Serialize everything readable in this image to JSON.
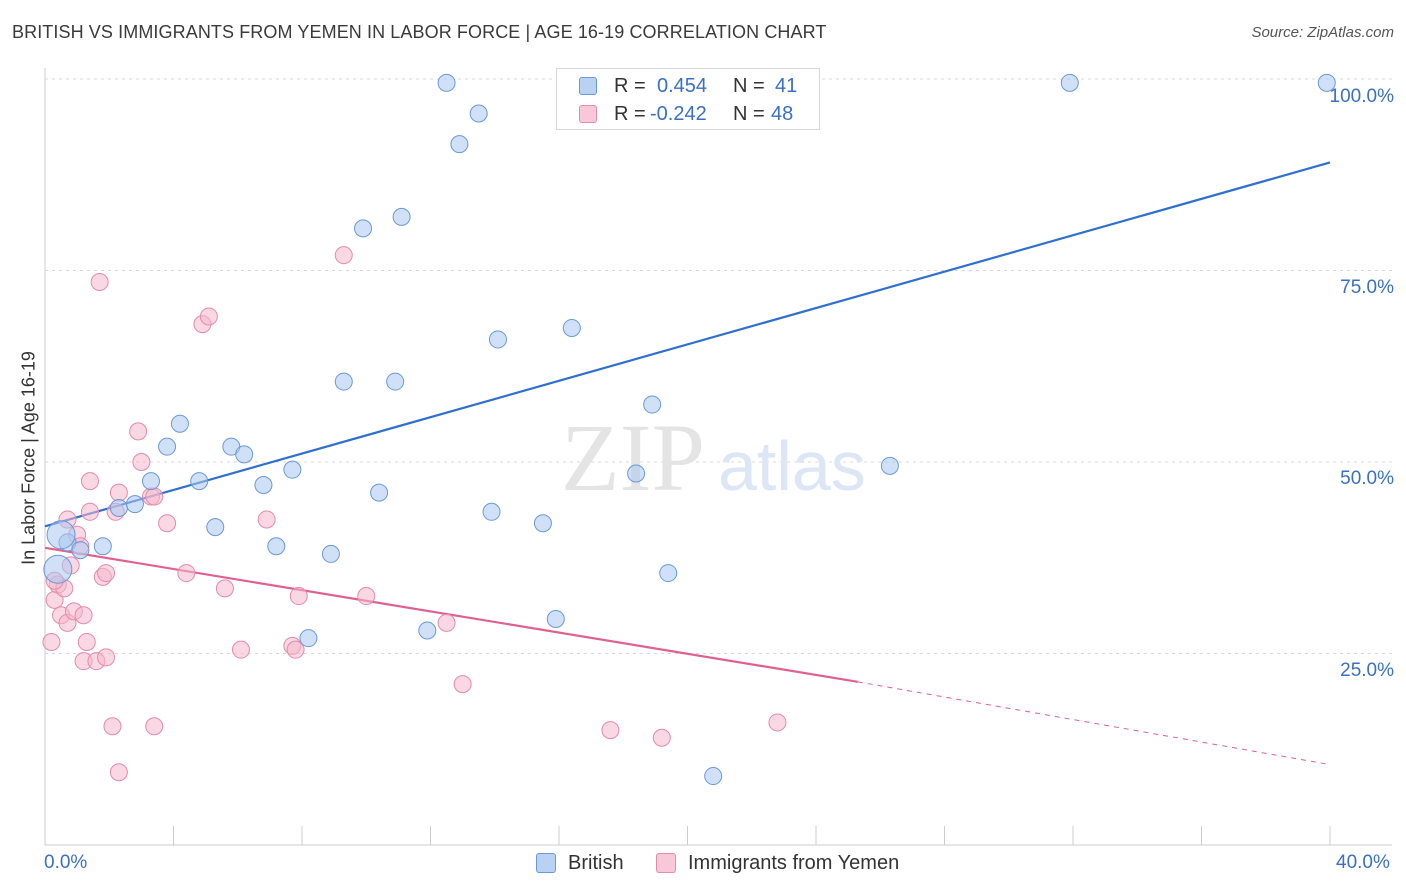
{
  "title": "BRITISH VS IMMIGRANTS FROM YEMEN IN LABOR FORCE | AGE 16-19 CORRELATION CHART",
  "source": "Source: ZipAtlas.com",
  "watermark": {
    "zip": "ZIP",
    "atlas": "atlas"
  },
  "colors": {
    "british": "#4a7fd4",
    "british_fill": "#a9c8f0",
    "yemen": "#e0608f",
    "yemen_fill": "#f5b8cc",
    "tick": "#3a6fc4",
    "grid": "#d8d8d8"
  },
  "legend": {
    "rows": [
      {
        "r_label": "R =",
        "r_value": "0.454",
        "n_label": "N =",
        "n_value": "41"
      },
      {
        "r_label": "R =",
        "r_value": "-0.242",
        "n_label": "N =",
        "n_value": "48"
      }
    ]
  },
  "bottom_legend": {
    "british": "British",
    "yemen": "Immigrants from Yemen"
  },
  "y_axis_label": "In Labor Force | Age 16-19",
  "y_ticks": [
    "100.0%",
    "75.0%",
    "50.0%",
    "25.0%"
  ],
  "x_ticks": {
    "left": "0.0%",
    "right": "40.0%"
  },
  "chart_data": {
    "type": "scatter",
    "title": "BRITISH VS IMMIGRANTS FROM YEMEN IN LABOR FORCE | AGE 16-19 CORRELATION CHART",
    "xlabel": "",
    "ylabel": "In Labor Force | Age 16-19",
    "xlim": [
      0,
      40
    ],
    "ylim": [
      0,
      100
    ],
    "grid": true,
    "legend_position": "top-center",
    "series": [
      {
        "name": "British",
        "r": 0.454,
        "n": 41,
        "trend": {
          "x": [
            0,
            40
          ],
          "y": [
            41.6,
            89.1
          ]
        },
        "points": [
          [
            0.4,
            36.0
          ],
          [
            0.7,
            39.5
          ],
          [
            1.8,
            39.0
          ],
          [
            2.3,
            44.0
          ],
          [
            2.8,
            44.5
          ],
          [
            3.3,
            47.5
          ],
          [
            3.8,
            52.0
          ],
          [
            4.2,
            55.0
          ],
          [
            4.8,
            47.5
          ],
          [
            5.3,
            41.5
          ],
          [
            5.8,
            52.0
          ],
          [
            6.2,
            51.0
          ],
          [
            6.8,
            47.0
          ],
          [
            7.2,
            39.0
          ],
          [
            7.7,
            49.0
          ],
          [
            8.2,
            27.0
          ],
          [
            8.9,
            38.0
          ],
          [
            9.3,
            60.5
          ],
          [
            9.9,
            80.5
          ],
          [
            10.4,
            46.0
          ],
          [
            10.9,
            60.5
          ],
          [
            11.1,
            82.0
          ],
          [
            11.9,
            28.0
          ],
          [
            12.5,
            99.5
          ],
          [
            12.9,
            91.5
          ],
          [
            13.5,
            95.5
          ],
          [
            13.9,
            43.5
          ],
          [
            14.1,
            66.0
          ],
          [
            15.5,
            42.0
          ],
          [
            15.9,
            29.5
          ],
          [
            16.4,
            67.5
          ],
          [
            18.1,
            99.5
          ],
          [
            18.4,
            48.5
          ],
          [
            18.9,
            57.5
          ],
          [
            19.4,
            35.5
          ],
          [
            20.8,
            9.0
          ],
          [
            26.3,
            49.5
          ],
          [
            31.9,
            99.5
          ],
          [
            39.9,
            99.5
          ],
          [
            0.5,
            40.5
          ],
          [
            1.1,
            38.5
          ]
        ]
      },
      {
        "name": "Immigrants from Yemen",
        "r": -0.242,
        "n": 48,
        "trend": {
          "x": [
            0,
            25.3
          ],
          "y": [
            38.8,
            21.3
          ],
          "dashed_to": {
            "x": 40,
            "y": 10.5
          }
        },
        "points": [
          [
            0.2,
            26.5
          ],
          [
            0.3,
            32.0
          ],
          [
            0.4,
            34.0
          ],
          [
            0.5,
            30.0
          ],
          [
            0.6,
            33.5
          ],
          [
            0.7,
            29.0
          ],
          [
            0.7,
            42.5
          ],
          [
            0.8,
            36.5
          ],
          [
            0.9,
            30.5
          ],
          [
            1.0,
            40.5
          ],
          [
            1.1,
            39.0
          ],
          [
            1.2,
            30.0
          ],
          [
            1.2,
            24.0
          ],
          [
            1.3,
            26.5
          ],
          [
            1.4,
            43.5
          ],
          [
            1.4,
            47.5
          ],
          [
            1.6,
            24.0
          ],
          [
            1.7,
            73.5
          ],
          [
            1.8,
            35.0
          ],
          [
            1.9,
            35.5
          ],
          [
            1.9,
            24.5
          ],
          [
            2.1,
            15.5
          ],
          [
            2.2,
            43.5
          ],
          [
            2.3,
            9.5
          ],
          [
            2.3,
            46.0
          ],
          [
            2.9,
            54.0
          ],
          [
            3.0,
            50.0
          ],
          [
            3.3,
            45.5
          ],
          [
            3.4,
            45.5
          ],
          [
            3.4,
            15.5
          ],
          [
            3.8,
            42.0
          ],
          [
            4.4,
            35.5
          ],
          [
            4.9,
            68.0
          ],
          [
            5.1,
            69.0
          ],
          [
            5.6,
            33.5
          ],
          [
            6.1,
            25.5
          ],
          [
            6.9,
            42.5
          ],
          [
            7.7,
            26.0
          ],
          [
            7.8,
            25.5
          ],
          [
            7.9,
            32.5
          ],
          [
            9.3,
            77.0
          ],
          [
            10.0,
            32.5
          ],
          [
            12.5,
            29.0
          ],
          [
            13.0,
            21.0
          ],
          [
            17.6,
            15.0
          ],
          [
            19.2,
            14.0
          ],
          [
            22.8,
            16.0
          ],
          [
            0.3,
            34.5
          ]
        ]
      }
    ]
  }
}
